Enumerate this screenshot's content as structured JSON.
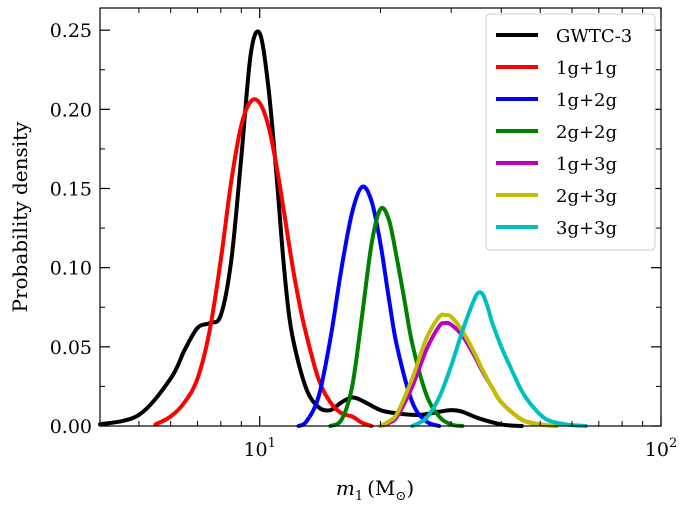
{
  "chart_data": {
    "type": "line",
    "title": "",
    "xlabel": "m",
    "xlabel_sub": "1",
    "xlabel_unit": "(M",
    "xlabel_unit_sub": "⊙",
    "xlabel_close": ")",
    "ylabel": "Probability density",
    "xscale": "log",
    "xlim": [
      4,
      100
    ],
    "ylim": [
      0,
      0.264
    ],
    "xticks_major": [
      {
        "value": 10,
        "base": "10",
        "exp": "1"
      },
      {
        "value": 100,
        "base": "10",
        "exp": "2"
      }
    ],
    "xticks_minor": [
      4,
      5,
      6,
      7,
      8,
      9,
      20,
      30,
      40,
      50,
      60,
      70,
      80,
      90
    ],
    "yticks": [
      {
        "value": 0.0,
        "label": "0.00"
      },
      {
        "value": 0.05,
        "label": "0.05"
      },
      {
        "value": 0.1,
        "label": "0.10"
      },
      {
        "value": 0.15,
        "label": "0.15"
      },
      {
        "value": 0.2,
        "label": "0.20"
      },
      {
        "value": 0.25,
        "label": "0.25"
      }
    ],
    "yticks_minor": [
      0.025,
      0.075,
      0.125,
      0.175,
      0.225
    ],
    "legend_position": "top-right",
    "series": [
      {
        "name": "GWTC-3",
        "color": "#000000",
        "x": [
          4,
          5,
          6,
          6.5,
          7,
          7.5,
          8,
          8.5,
          9,
          9.5,
          10,
          10.5,
          11,
          11.5,
          12,
          13,
          14,
          15,
          16,
          17,
          18,
          20,
          22,
          25,
          28,
          30,
          32,
          35,
          40,
          45
        ],
        "y": [
          0.001,
          0.007,
          0.03,
          0.048,
          0.062,
          0.065,
          0.07,
          0.105,
          0.17,
          0.235,
          0.248,
          0.215,
          0.16,
          0.1,
          0.06,
          0.025,
          0.012,
          0.01,
          0.015,
          0.018,
          0.016,
          0.01,
          0.008,
          0.007,
          0.009,
          0.01,
          0.009,
          0.005,
          0.001,
          0
        ]
      },
      {
        "name": "1g+1g",
        "color": "#ff0000",
        "x": [
          5.5,
          6,
          6.5,
          7,
          7.5,
          8,
          8.5,
          9,
          9.5,
          10,
          10.5,
          11,
          11.5,
          12,
          12.5,
          13,
          14,
          15,
          16,
          17,
          18,
          19
        ],
        "y": [
          0.001,
          0.006,
          0.015,
          0.03,
          0.06,
          0.105,
          0.155,
          0.19,
          0.205,
          0.204,
          0.19,
          0.165,
          0.135,
          0.105,
          0.08,
          0.06,
          0.03,
          0.015,
          0.008,
          0.006,
          0.002,
          0
        ]
      },
      {
        "name": "1g+2g",
        "color": "#0000ff",
        "x": [
          12.5,
          13,
          14,
          15,
          16,
          17,
          18,
          19,
          20,
          21,
          22,
          24,
          26,
          28
        ],
        "y": [
          0,
          0.002,
          0.018,
          0.055,
          0.1,
          0.135,
          0.151,
          0.142,
          0.115,
          0.08,
          0.05,
          0.015,
          0.003,
          0
        ]
      },
      {
        "name": "2g+2g",
        "color": "#008000",
        "x": [
          15,
          16,
          17,
          18,
          19,
          20,
          21,
          22,
          23,
          24,
          26,
          28,
          30,
          32
        ],
        "y": [
          0,
          0.004,
          0.025,
          0.07,
          0.115,
          0.137,
          0.13,
          0.105,
          0.078,
          0.052,
          0.02,
          0.006,
          0.001,
          0
        ]
      },
      {
        "name": "1g+3g",
        "color": "#bf00bf",
        "x": [
          20,
          21,
          22,
          24,
          26,
          28,
          29,
          30,
          32,
          34,
          36,
          38,
          40,
          45,
          50,
          55
        ],
        "y": [
          0,
          0.002,
          0.006,
          0.025,
          0.048,
          0.063,
          0.065,
          0.064,
          0.057,
          0.046,
          0.034,
          0.024,
          0.015,
          0.004,
          0.001,
          0
        ]
      },
      {
        "name": "2g+3g",
        "color": "#bfbf00",
        "x": [
          20,
          21,
          22,
          24,
          26,
          28,
          29,
          30,
          32,
          34,
          36,
          38,
          40,
          45,
          50,
          55
        ],
        "y": [
          0,
          0.003,
          0.008,
          0.03,
          0.055,
          0.069,
          0.07,
          0.069,
          0.06,
          0.048,
          0.035,
          0.024,
          0.015,
          0.004,
          0.001,
          0
        ]
      },
      {
        "name": "3g+3g",
        "color": "#00bfbf",
        "x": [
          24,
          26,
          28,
          30,
          32,
          34,
          35,
          36,
          37,
          38,
          40,
          42,
          45,
          48,
          52,
          58,
          65
        ],
        "y": [
          0,
          0.005,
          0.018,
          0.038,
          0.06,
          0.078,
          0.084,
          0.083,
          0.075,
          0.065,
          0.05,
          0.038,
          0.022,
          0.012,
          0.004,
          0.001,
          0
        ]
      }
    ]
  }
}
